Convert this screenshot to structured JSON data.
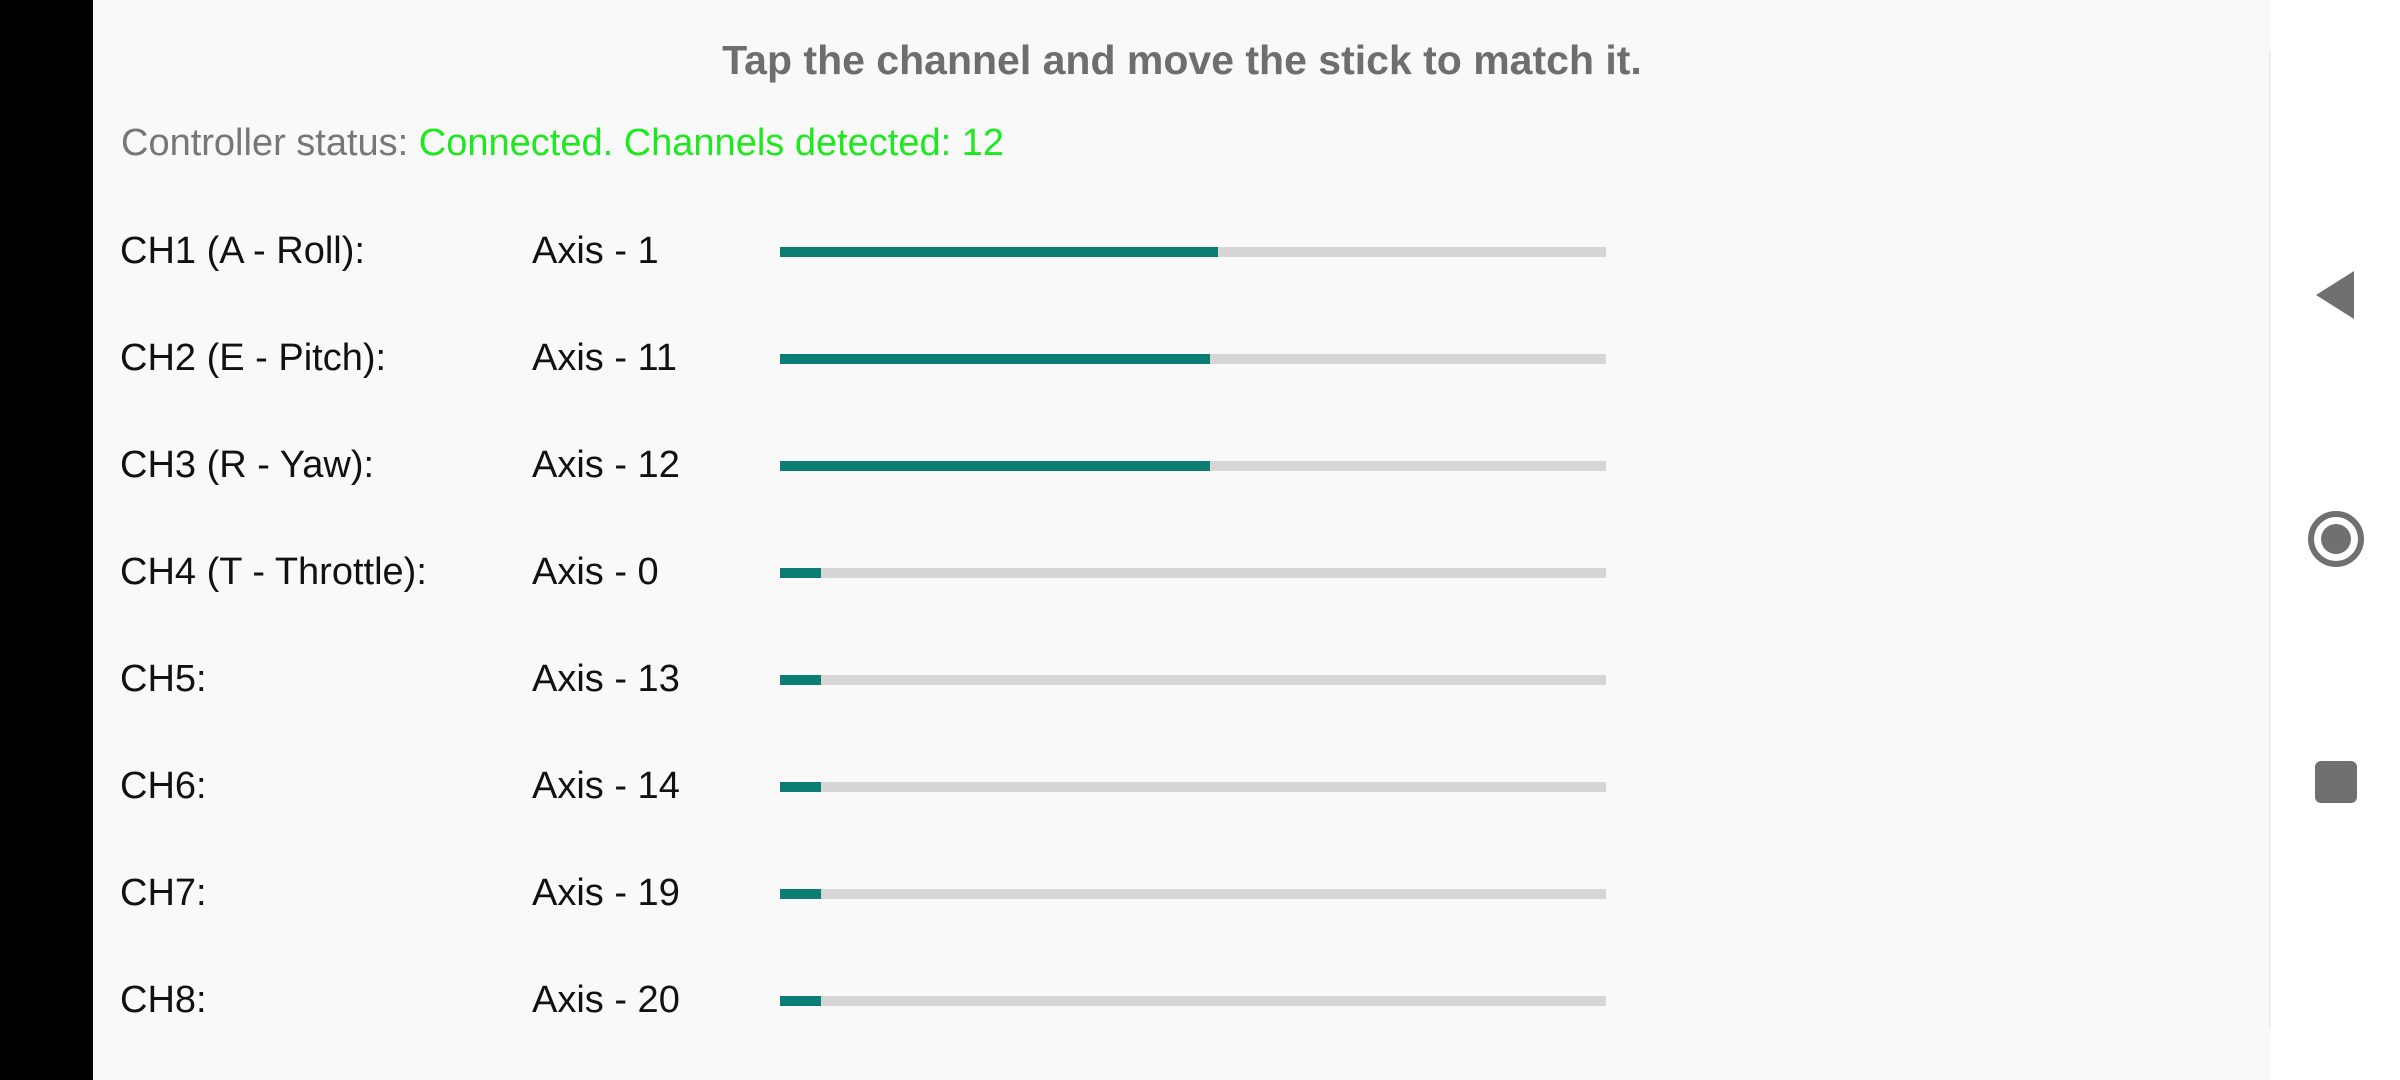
{
  "title": "Tap the channel and move the stick to match it.",
  "status": {
    "label": "Controller status: ",
    "value": "Connected. Channels detected: 12",
    "value_color": "#1ee81e"
  },
  "accent_color": "#0b7d72",
  "channels": [
    {
      "name": "CH1 (A - Roll):",
      "axis": "Axis - 1",
      "level": 0.53
    },
    {
      "name": "CH2 (E - Pitch):",
      "axis": "Axis - 11",
      "level": 0.52
    },
    {
      "name": "CH3 (R - Yaw):",
      "axis": "Axis - 12",
      "level": 0.52
    },
    {
      "name": "CH4 (T - Throttle):",
      "axis": "Axis - 0",
      "level": 0.05
    },
    {
      "name": "CH5:",
      "axis": "Axis - 13",
      "level": 0.05
    },
    {
      "name": "CH6:",
      "axis": "Axis - 14",
      "level": 0.05
    },
    {
      "name": "CH7:",
      "axis": "Axis - 19",
      "level": 0.05
    },
    {
      "name": "CH8:",
      "axis": "Axis - 20",
      "level": 0.05
    }
  ],
  "navbar": {
    "icons": [
      "back-icon",
      "home-icon",
      "recents-icon"
    ]
  }
}
